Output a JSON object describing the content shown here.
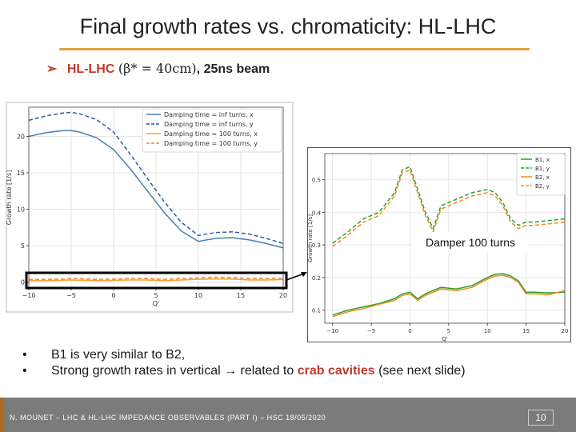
{
  "slide": {
    "title": "Final growth rates vs. chromaticity: HL-LHC",
    "subtitle_arrow": "➢",
    "subtitle_bold": "HL-LHC",
    "subtitle_formula": "(β* = 40cm)",
    "subtitle_rest": ", 25ns beam",
    "bullets": [
      {
        "pre": "B1 is very similar to B2,",
        "hl": "",
        "post": ""
      },
      {
        "pre": "Strong growth rates in vertical → related to ",
        "hl": "crab cavities",
        "post": " (see next slide)"
      }
    ],
    "bullet_glyph": "•",
    "footer": "N. MOUNET – LHC & HL-LHC IMPEDANCE OBSERVABLES (PART I) – HSC 18/05/2020",
    "page_number": "10",
    "colors": {
      "accent": "#c0392b",
      "rule": "#e3a23a",
      "footer": "#7b7b7b"
    },
    "inset_annotation": "Damper 100 turns"
  },
  "chart_data": [
    {
      "type": "line",
      "title": "",
      "xlabel": "Q'",
      "ylabel": "Growth rate [1/s]",
      "xlim": [
        -10,
        20
      ],
      "ylim": [
        -0.8,
        24
      ],
      "xticks": [
        -10,
        -5,
        0,
        5,
        10,
        15,
        20
      ],
      "yticks": [
        0,
        5,
        10,
        15,
        20
      ],
      "grid": true,
      "legend": "top-right",
      "x": [
        -10,
        -8,
        -6,
        -5,
        -4,
        -2,
        0,
        2,
        4,
        6,
        8,
        10,
        12,
        14,
        16,
        18,
        20
      ],
      "series": [
        {
          "name": "Damping time = inf turns, x",
          "color": "#4a7fb5",
          "dash": false,
          "values": [
            20.0,
            20.5,
            20.8,
            20.8,
            20.6,
            19.8,
            18.2,
            15.5,
            12.5,
            9.5,
            7.0,
            5.6,
            6.0,
            6.1,
            5.8,
            5.3,
            4.7
          ]
        },
        {
          "name": "Damping time = inf turns, y",
          "color": "#2c5f9e",
          "dash": true,
          "values": [
            22.2,
            22.8,
            23.2,
            23.3,
            23.1,
            22.3,
            20.6,
            17.5,
            14.2,
            11.0,
            8.2,
            6.4,
            6.8,
            6.9,
            6.6,
            6.0,
            5.3
          ]
        },
        {
          "name": "Damping time = 100 turns, x",
          "color": "#f0a030",
          "dash": false,
          "values": [
            0.2,
            0.22,
            0.25,
            0.3,
            0.28,
            0.22,
            0.25,
            0.3,
            0.3,
            0.2,
            0.3,
            0.4,
            0.45,
            0.42,
            0.3,
            0.3,
            0.35
          ]
        },
        {
          "name": "Damping time = 100 turns, y",
          "color": "#e8892b",
          "dash": true,
          "values": [
            0.35,
            0.38,
            0.42,
            0.5,
            0.47,
            0.38,
            0.42,
            0.5,
            0.5,
            0.38,
            0.5,
            0.62,
            0.68,
            0.65,
            0.5,
            0.5,
            0.55
          ]
        }
      ]
    },
    {
      "type": "line",
      "title": "",
      "xlabel": "Q'",
      "ylabel": "Growth rate [1/s]",
      "xlim": [
        -11,
        20
      ],
      "ylim": [
        0.06,
        0.58
      ],
      "xticks": [
        -10,
        -5,
        0,
        5,
        10,
        15,
        20
      ],
      "yticks": [
        0.1,
        0.2,
        0.3,
        0.4,
        0.5
      ],
      "grid": true,
      "legend": "top-right",
      "x": [
        -10,
        -8,
        -6,
        -4,
        -2,
        -1,
        0,
        1,
        2,
        3,
        4,
        6,
        8,
        10,
        11,
        12,
        13,
        14,
        15,
        16,
        18,
        20
      ],
      "series": [
        {
          "name": "B1, x",
          "color": "#2ca02c",
          "dash": false,
          "values": [
            0.085,
            0.1,
            0.11,
            0.12,
            0.135,
            0.15,
            0.155,
            0.135,
            0.15,
            0.16,
            0.17,
            0.165,
            0.175,
            0.2,
            0.21,
            0.212,
            0.205,
            0.19,
            0.155,
            0.155,
            0.153,
            0.155
          ]
        },
        {
          "name": "B1, y",
          "color": "#2ca02c",
          "dash": true,
          "values": [
            0.305,
            0.34,
            0.38,
            0.4,
            0.46,
            0.53,
            0.54,
            0.47,
            0.4,
            0.35,
            0.42,
            0.44,
            0.46,
            0.47,
            0.46,
            0.43,
            0.38,
            0.36,
            0.37,
            0.37,
            0.375,
            0.38
          ]
        },
        {
          "name": "B2, x",
          "color": "#f08a1c",
          "dash": false,
          "values": [
            0.08,
            0.095,
            0.105,
            0.118,
            0.13,
            0.145,
            0.15,
            0.13,
            0.145,
            0.155,
            0.165,
            0.16,
            0.17,
            0.195,
            0.205,
            0.207,
            0.2,
            0.185,
            0.15,
            0.15,
            0.148,
            0.16
          ]
        },
        {
          "name": "B2, y",
          "color": "#f08a1c",
          "dash": true,
          "values": [
            0.295,
            0.33,
            0.37,
            0.39,
            0.45,
            0.52,
            0.53,
            0.46,
            0.39,
            0.34,
            0.41,
            0.43,
            0.45,
            0.46,
            0.45,
            0.42,
            0.37,
            0.35,
            0.36,
            0.36,
            0.365,
            0.37
          ]
        }
      ]
    }
  ]
}
